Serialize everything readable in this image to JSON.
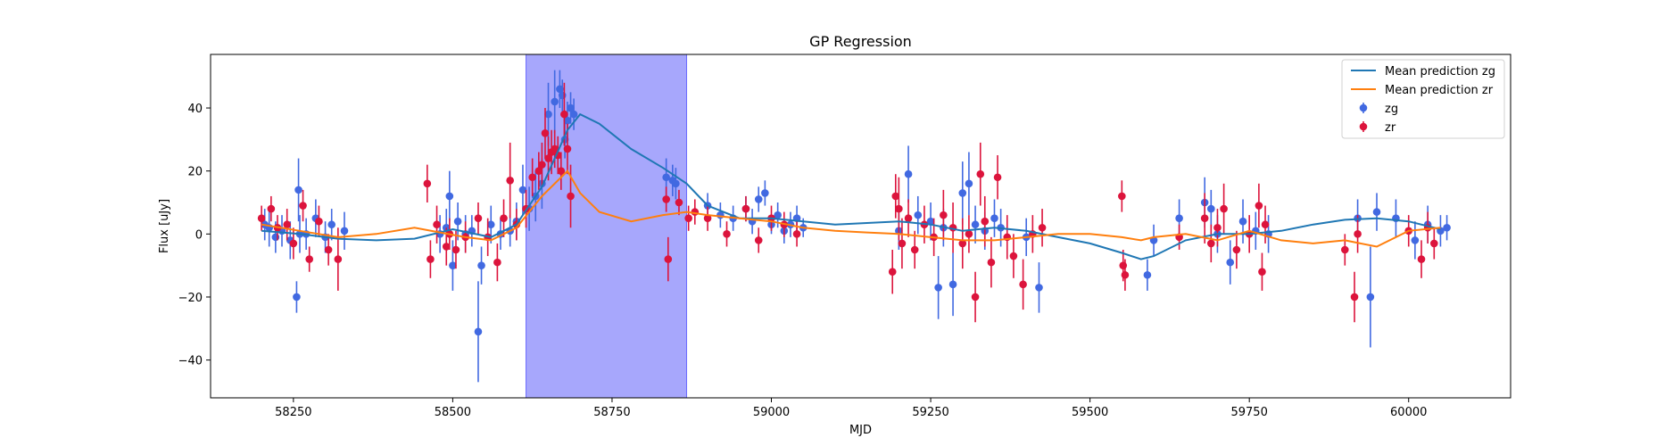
{
  "chart_data": {
    "type": "scatter",
    "title": "GP Regression",
    "xlabel": "MJD",
    "ylabel": "Flux [uJy]",
    "xlim": [
      58120,
      60160
    ],
    "ylim": [
      -52,
      57
    ],
    "xticks": [
      58250,
      58500,
      58750,
      59000,
      59250,
      59500,
      59750,
      60000
    ],
    "yticks": [
      -40,
      -20,
      0,
      20,
      40
    ],
    "grid": false,
    "legend": "top-right",
    "shaded_region": {
      "x0": 58615,
      "x1": 58867,
      "color": "#a7a7fc"
    },
    "colors": {
      "zg_line": "#1f77b4",
      "zr_line": "#ff7f0e",
      "zg_points": "#4169e1",
      "zr_points": "#dc143c"
    },
    "legend_entries": [
      "Mean prediction zg",
      "Mean prediction zr",
      "zg",
      "zr"
    ],
    "series": [
      {
        "name": "Mean prediction zg",
        "kind": "line",
        "x": [
          58200,
          58260,
          58320,
          58380,
          58440,
          58500,
          58560,
          58600,
          58640,
          58680,
          58700,
          58730,
          58780,
          58830,
          58867,
          58900,
          58950,
          59000,
          59050,
          59100,
          59150,
          59200,
          59250,
          59300,
          59350,
          59400,
          59450,
          59500,
          59550,
          59580,
          59600,
          59650,
          59700,
          59750,
          59800,
          59850,
          59900,
          59950,
          60000,
          60050
        ],
        "y": [
          1,
          0,
          -1.5,
          -2,
          -1.5,
          1.5,
          -1,
          3,
          15,
          33,
          38,
          35,
          27,
          21,
          16,
          9,
          5,
          5,
          4,
          3,
          3.5,
          4,
          3,
          1,
          2,
          1,
          -1,
          -3,
          -6,
          -8,
          -7,
          -2,
          0,
          0,
          1,
          3,
          4.5,
          5,
          4,
          1.5
        ]
      },
      {
        "name": "Mean prediction zr",
        "kind": "line",
        "x": [
          58200,
          58260,
          58320,
          58380,
          58440,
          58480,
          58520,
          58560,
          58600,
          58640,
          58680,
          58700,
          58730,
          58780,
          58830,
          58867,
          58900,
          58950,
          59000,
          59050,
          59100,
          59150,
          59200,
          59250,
          59300,
          59350,
          59400,
          59450,
          59500,
          59550,
          59580,
          59600,
          59650,
          59700,
          59750,
          59800,
          59850,
          59900,
          59950,
          60000,
          60050
        ],
        "y": [
          3,
          1,
          -1,
          0,
          2,
          0.5,
          -1,
          -2,
          2,
          12,
          20,
          13,
          7,
          4,
          6,
          7,
          6,
          5,
          4,
          2,
          1,
          0.5,
          0,
          -1,
          -2,
          -2,
          -1,
          0,
          0,
          -1,
          -2,
          -1,
          0,
          -2,
          1,
          -2,
          -3,
          -2,
          -4,
          1,
          2
        ]
      },
      {
        "name": "zg",
        "kind": "errorbar",
        "x": [
          58205,
          58212,
          58222,
          58232,
          58245,
          58255,
          58258,
          58260,
          58270,
          58285,
          58300,
          58310,
          58330,
          58480,
          58490,
          58495,
          58500,
          58508,
          58520,
          58530,
          58540,
          58545,
          58560,
          58575,
          58590,
          58600,
          58610,
          58620,
          58630,
          58640,
          58650,
          58660,
          58668,
          58672,
          58676,
          58680,
          58685,
          58690,
          58835,
          58845,
          58850,
          58900,
          58920,
          58940,
          58960,
          58970,
          58980,
          58990,
          59000,
          59010,
          59020,
          59030,
          59040,
          59050,
          59200,
          59215,
          59230,
          59250,
          59262,
          59270,
          59285,
          59300,
          59310,
          59320,
          59335,
          59350,
          59360,
          59400,
          59420,
          59590,
          59600,
          59640,
          59680,
          59690,
          59700,
          59720,
          59740,
          59760,
          59780,
          59920,
          59940,
          59950,
          59980,
          60010,
          60030,
          60050,
          60060
        ],
        "y": [
          3,
          2,
          -1,
          1,
          -2,
          -20,
          14,
          0,
          0,
          5,
          -1,
          3,
          1,
          0,
          2,
          12,
          -10,
          4,
          0,
          1,
          -31,
          -10,
          3,
          0,
          1,
          4,
          14,
          8,
          12,
          16,
          38,
          42,
          46,
          44,
          30,
          36,
          40,
          38,
          18,
          17,
          16,
          9,
          6,
          5,
          8,
          4,
          11,
          13,
          3,
          6,
          1,
          3,
          5,
          2,
          1,
          19,
          6,
          4,
          -17,
          2,
          -16,
          13,
          16,
          3,
          1,
          5,
          2,
          -1,
          -17,
          -13,
          -2,
          5,
          10,
          8,
          0,
          -9,
          4,
          1,
          0,
          5,
          -20,
          7,
          5,
          -2,
          3,
          1,
          2
        ],
        "err": [
          5,
          6,
          5,
          5,
          6,
          5,
          10,
          6,
          5,
          6,
          5,
          5,
          6,
          6,
          6,
          8,
          8,
          6,
          6,
          5,
          16,
          6,
          6,
          5,
          5,
          6,
          8,
          7,
          8,
          8,
          10,
          10,
          6,
          5,
          6,
          6,
          5,
          5,
          6,
          5,
          5,
          4,
          4,
          4,
          4,
          4,
          4,
          4,
          3,
          4,
          4,
          4,
          4,
          3,
          6,
          9,
          6,
          6,
          10,
          6,
          10,
          10,
          10,
          6,
          6,
          6,
          6,
          6,
          8,
          5,
          5,
          6,
          8,
          6,
          6,
          7,
          7,
          6,
          6,
          6,
          16,
          6,
          6,
          6,
          6,
          5,
          4
        ]
      },
      {
        "name": "zr",
        "kind": "errorbar",
        "x": [
          58200,
          58215,
          58225,
          58240,
          58250,
          58265,
          58275,
          58290,
          58305,
          58320,
          58460,
          58465,
          58475,
          58490,
          58495,
          58505,
          58520,
          58540,
          58555,
          58570,
          58580,
          58590,
          58600,
          58615,
          58625,
          58635,
          58640,
          58645,
          58650,
          58655,
          58660,
          58665,
          58670,
          58675,
          58680,
          58685,
          58835,
          58838,
          58855,
          58870,
          58880,
          58900,
          58930,
          58960,
          58980,
          59000,
          59020,
          59040,
          59190,
          59195,
          59200,
          59205,
          59215,
          59225,
          59240,
          59255,
          59270,
          59285,
          59300,
          59310,
          59320,
          59328,
          59335,
          59345,
          59355,
          59370,
          59380,
          59395,
          59410,
          59425,
          59550,
          59552,
          59555,
          59640,
          59680,
          59690,
          59700,
          59710,
          59730,
          59750,
          59765,
          59770,
          59775,
          59900,
          59915,
          59920,
          60000,
          60020,
          60030,
          60040
        ],
        "y": [
          5,
          8,
          2,
          3,
          -3,
          9,
          -8,
          4,
          -5,
          -8,
          16,
          -8,
          3,
          -4,
          0,
          -5,
          -1,
          5,
          -1,
          -9,
          5,
          17,
          3,
          8,
          18,
          20,
          22,
          32,
          24,
          26,
          27,
          25,
          20,
          38,
          27,
          12,
          11,
          -8,
          10,
          5,
          7,
          5,
          0,
          8,
          -2,
          5,
          3,
          0,
          -12,
          12,
          8,
          -3,
          5,
          -5,
          3,
          -1,
          6,
          2,
          -3,
          0,
          -20,
          19,
          4,
          -9,
          18,
          -1,
          -7,
          -16,
          0,
          2,
          12,
          -10,
          -13,
          -1,
          5,
          -3,
          2,
          8,
          -5,
          0,
          9,
          -12,
          3,
          -5,
          -20,
          0,
          1,
          -8,
          2,
          -3
        ],
        "err": [
          4,
          4,
          4,
          5,
          5,
          5,
          4,
          5,
          5,
          10,
          6,
          6,
          6,
          6,
          5,
          6,
          5,
          5,
          6,
          6,
          6,
          12,
          5,
          6,
          6,
          6,
          7,
          8,
          7,
          7,
          6,
          6,
          6,
          10,
          8,
          10,
          4,
          7,
          4,
          4,
          4,
          4,
          4,
          4,
          4,
          4,
          4,
          4,
          7,
          7,
          10,
          8,
          6,
          6,
          6,
          6,
          8,
          8,
          8,
          6,
          8,
          10,
          8,
          8,
          7,
          7,
          7,
          8,
          6,
          6,
          5,
          5,
          5,
          4,
          8,
          6,
          6,
          8,
          6,
          6,
          7,
          6,
          6,
          5,
          8,
          6,
          5,
          6,
          5,
          5
        ]
      }
    ]
  }
}
